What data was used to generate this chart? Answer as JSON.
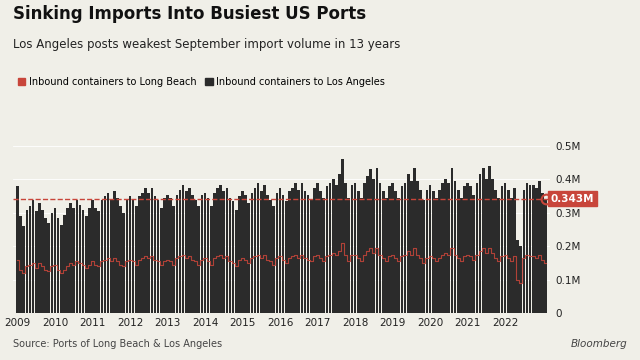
{
  "title": "Sinking Imports Into Busiest US Ports",
  "subtitle": "Los Angeles posts weakest September import volume in 13 years",
  "legend_lb": "Inbound containers to Long Beach",
  "legend_la": "Inbound containers to Los Angeles",
  "source": "Source: Ports of Long Beach & Los Angeles",
  "watermark": "Bloomberg",
  "dashed_line_value": 343000,
  "annotation_value": "0.343M",
  "ylim": [
    0,
    560000
  ],
  "yticks": [
    0,
    100000,
    200000,
    300000,
    400000,
    500000
  ],
  "ytick_labels": [
    "0",
    "0.1M",
    "0.2M",
    "0.3M",
    "0.4M",
    "0.5M"
  ],
  "bg_color": "#F0EFE8",
  "bar_color_la": "#2B2B2B",
  "bar_color_lb": "#C8453A",
  "dashed_color": "#C8453A",
  "annotation_bg": "#C8453A",
  "annotation_text_color": "white",
  "start_year": 2009,
  "long_beach_data": [
    160000,
    130000,
    120000,
    140000,
    145000,
    150000,
    135000,
    150000,
    140000,
    130000,
    125000,
    140000,
    145000,
    130000,
    120000,
    130000,
    140000,
    150000,
    145000,
    155000,
    150000,
    145000,
    135000,
    145000,
    155000,
    145000,
    140000,
    155000,
    160000,
    165000,
    155000,
    165000,
    155000,
    145000,
    140000,
    155000,
    160000,
    155000,
    145000,
    160000,
    165000,
    170000,
    165000,
    170000,
    160000,
    155000,
    145000,
    155000,
    160000,
    155000,
    145000,
    165000,
    170000,
    175000,
    165000,
    170000,
    160000,
    155000,
    145000,
    160000,
    165000,
    155000,
    145000,
    165000,
    170000,
    175000,
    165000,
    170000,
    155000,
    150000,
    140000,
    160000,
    165000,
    160000,
    150000,
    165000,
    170000,
    175000,
    165000,
    175000,
    160000,
    155000,
    145000,
    165000,
    170000,
    160000,
    150000,
    165000,
    170000,
    175000,
    165000,
    175000,
    165000,
    160000,
    155000,
    170000,
    175000,
    165000,
    155000,
    170000,
    175000,
    180000,
    175000,
    185000,
    210000,
    175000,
    155000,
    175000,
    175000,
    165000,
    155000,
    175000,
    185000,
    195000,
    180000,
    195000,
    175000,
    165000,
    155000,
    170000,
    175000,
    165000,
    155000,
    170000,
    175000,
    185000,
    175000,
    195000,
    175000,
    165000,
    150000,
    165000,
    170000,
    165000,
    155000,
    165000,
    175000,
    180000,
    175000,
    195000,
    175000,
    165000,
    155000,
    170000,
    175000,
    170000,
    160000,
    175000,
    185000,
    195000,
    180000,
    195000,
    180000,
    165000,
    155000,
    170000,
    175000,
    165000,
    155000,
    170000,
    100000,
    90000,
    165000,
    175000,
    170000,
    170000,
    165000,
    175000,
    160000,
    150000
  ],
  "los_angeles_data": [
    380000,
    290000,
    260000,
    310000,
    320000,
    340000,
    305000,
    330000,
    310000,
    285000,
    270000,
    300000,
    315000,
    285000,
    265000,
    295000,
    315000,
    330000,
    315000,
    340000,
    325000,
    310000,
    290000,
    315000,
    340000,
    315000,
    305000,
    340000,
    350000,
    360000,
    340000,
    365000,
    345000,
    320000,
    300000,
    340000,
    350000,
    340000,
    320000,
    350000,
    360000,
    375000,
    360000,
    375000,
    350000,
    340000,
    315000,
    345000,
    355000,
    345000,
    320000,
    355000,
    370000,
    385000,
    365000,
    375000,
    355000,
    340000,
    320000,
    355000,
    360000,
    345000,
    320000,
    360000,
    375000,
    385000,
    365000,
    375000,
    345000,
    335000,
    310000,
    350000,
    365000,
    355000,
    330000,
    360000,
    375000,
    390000,
    365000,
    385000,
    355000,
    340000,
    320000,
    360000,
    375000,
    355000,
    335000,
    365000,
    375000,
    390000,
    370000,
    390000,
    365000,
    355000,
    340000,
    375000,
    390000,
    365000,
    345000,
    380000,
    390000,
    400000,
    385000,
    415000,
    460000,
    390000,
    345000,
    385000,
    390000,
    365000,
    345000,
    390000,
    410000,
    430000,
    400000,
    435000,
    390000,
    365000,
    345000,
    380000,
    390000,
    365000,
    345000,
    380000,
    390000,
    415000,
    395000,
    435000,
    395000,
    370000,
    340000,
    370000,
    385000,
    365000,
    345000,
    370000,
    390000,
    400000,
    390000,
    435000,
    395000,
    370000,
    345000,
    380000,
    390000,
    380000,
    355000,
    390000,
    415000,
    435000,
    400000,
    440000,
    400000,
    370000,
    345000,
    380000,
    390000,
    370000,
    345000,
    375000,
    220000,
    200000,
    370000,
    390000,
    385000,
    385000,
    375000,
    395000,
    360000,
    343000
  ]
}
